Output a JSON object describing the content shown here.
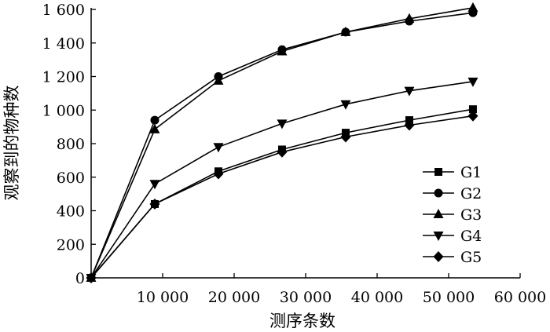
{
  "chart_data": {
    "type": "line",
    "xlabel": "测序条数",
    "ylabel": "观察到的物种数",
    "xlim": [
      0,
      60000
    ],
    "ylim": [
      0,
      1600
    ],
    "x_ticks": [
      10000,
      20000,
      30000,
      40000,
      50000,
      60000
    ],
    "x_tick_labels": [
      "10 000",
      "20 000",
      "30 000",
      "40 000",
      "50 000",
      "60 000"
    ],
    "y_ticks": [
      0,
      200,
      400,
      600,
      800,
      1000,
      1200,
      1400,
      1600
    ],
    "y_tick_labels": [
      "0",
      "200",
      "400",
      "600",
      "800",
      "1 000",
      "1 200",
      "1 400",
      "1 600"
    ],
    "x": [
      0,
      8900,
      17800,
      26700,
      35600,
      44500,
      53400
    ],
    "legend_position": "right",
    "grid": false,
    "series": [
      {
        "name": "G1",
        "marker": "square",
        "values": [
          0,
          440,
          635,
          765,
          865,
          940,
          1005
        ]
      },
      {
        "name": "G2",
        "marker": "circle",
        "values": [
          0,
          940,
          1200,
          1360,
          1465,
          1530,
          1580
        ]
      },
      {
        "name": "G3",
        "marker": "triangle-up",
        "values": [
          0,
          885,
          1175,
          1350,
          1465,
          1545,
          1610
        ]
      },
      {
        "name": "G4",
        "marker": "triangle-down",
        "values": [
          0,
          560,
          780,
          920,
          1035,
          1115,
          1170
        ]
      },
      {
        "name": "G5",
        "marker": "diamond",
        "values": [
          0,
          440,
          620,
          750,
          840,
          910,
          965
        ]
      }
    ]
  }
}
